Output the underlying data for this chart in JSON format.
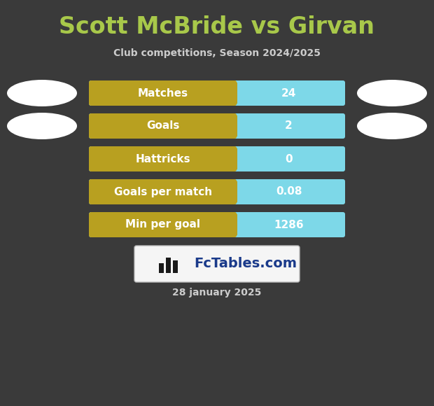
{
  "title": "Scott McBride vs Girvan",
  "subtitle": "Club competitions, Season 2024/2025",
  "date": "28 january 2025",
  "background_color": "#3a3a3a",
  "title_color": "#a8c84a",
  "subtitle_color": "#cccccc",
  "date_color": "#cccccc",
  "rows": [
    {
      "label": "Matches",
      "value": "24"
    },
    {
      "label": "Goals",
      "value": "2"
    },
    {
      "label": "Hattricks",
      "value": "0"
    },
    {
      "label": "Goals per match",
      "value": "0.08"
    },
    {
      "label": "Min per goal",
      "value": "1286"
    }
  ],
  "bar_left_color": "#b8a020",
  "bar_right_color": "#7dd8e8",
  "oval_color": "#ffffff",
  "logo_text": "FcTables.com",
  "logo_text_color": "#1a3a8a",
  "logo_bg": "#f5f5f5",
  "title_fontsize": 24,
  "subtitle_fontsize": 10,
  "bar_label_fontsize": 11,
  "bar_value_fontsize": 11,
  "date_fontsize": 10,
  "logo_fontsize": 14
}
